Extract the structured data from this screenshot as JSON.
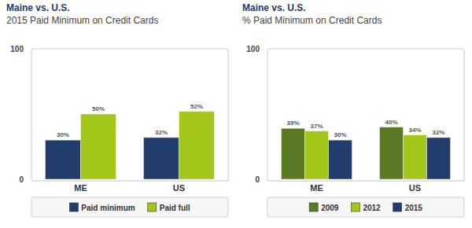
{
  "chart_data": [
    {
      "type": "bar",
      "title": "Maine vs. U.S.",
      "subtitle": "2015 Paid Minimum on Credit Cards",
      "categories": [
        "ME",
        "US"
      ],
      "series": [
        {
          "name": "Paid minimum",
          "color": "#213d6b",
          "values": [
            30,
            32
          ],
          "value_labels": [
            "30%",
            "32%"
          ]
        },
        {
          "name": "Paid full",
          "color": "#a3c61a",
          "values": [
            50,
            52
          ],
          "value_labels": [
            "50%",
            "52%"
          ]
        }
      ],
      "ylim": [
        0,
        100
      ],
      "yticks": [
        0,
        100
      ],
      "grid": false,
      "legend": "bottom",
      "data_labels": true
    },
    {
      "type": "bar",
      "title": "Maine vs. U.S.",
      "subtitle": "% Paid Minimum on Credit Cards",
      "categories": [
        "ME",
        "US"
      ],
      "series": [
        {
          "name": "2009",
          "color": "#5b7a24",
          "values": [
            39,
            40
          ],
          "value_labels": [
            "39%",
            "40%"
          ]
        },
        {
          "name": "2012",
          "color": "#a3c61a",
          "values": [
            37,
            34
          ],
          "value_labels": [
            "37%",
            "34%"
          ]
        },
        {
          "name": "2015",
          "color": "#213d6b",
          "values": [
            30,
            32
          ],
          "value_labels": [
            "30%",
            "32%"
          ]
        }
      ],
      "ylim": [
        0,
        100
      ],
      "yticks": [
        0,
        100
      ],
      "grid": false,
      "legend": "bottom",
      "data_labels": true
    }
  ]
}
